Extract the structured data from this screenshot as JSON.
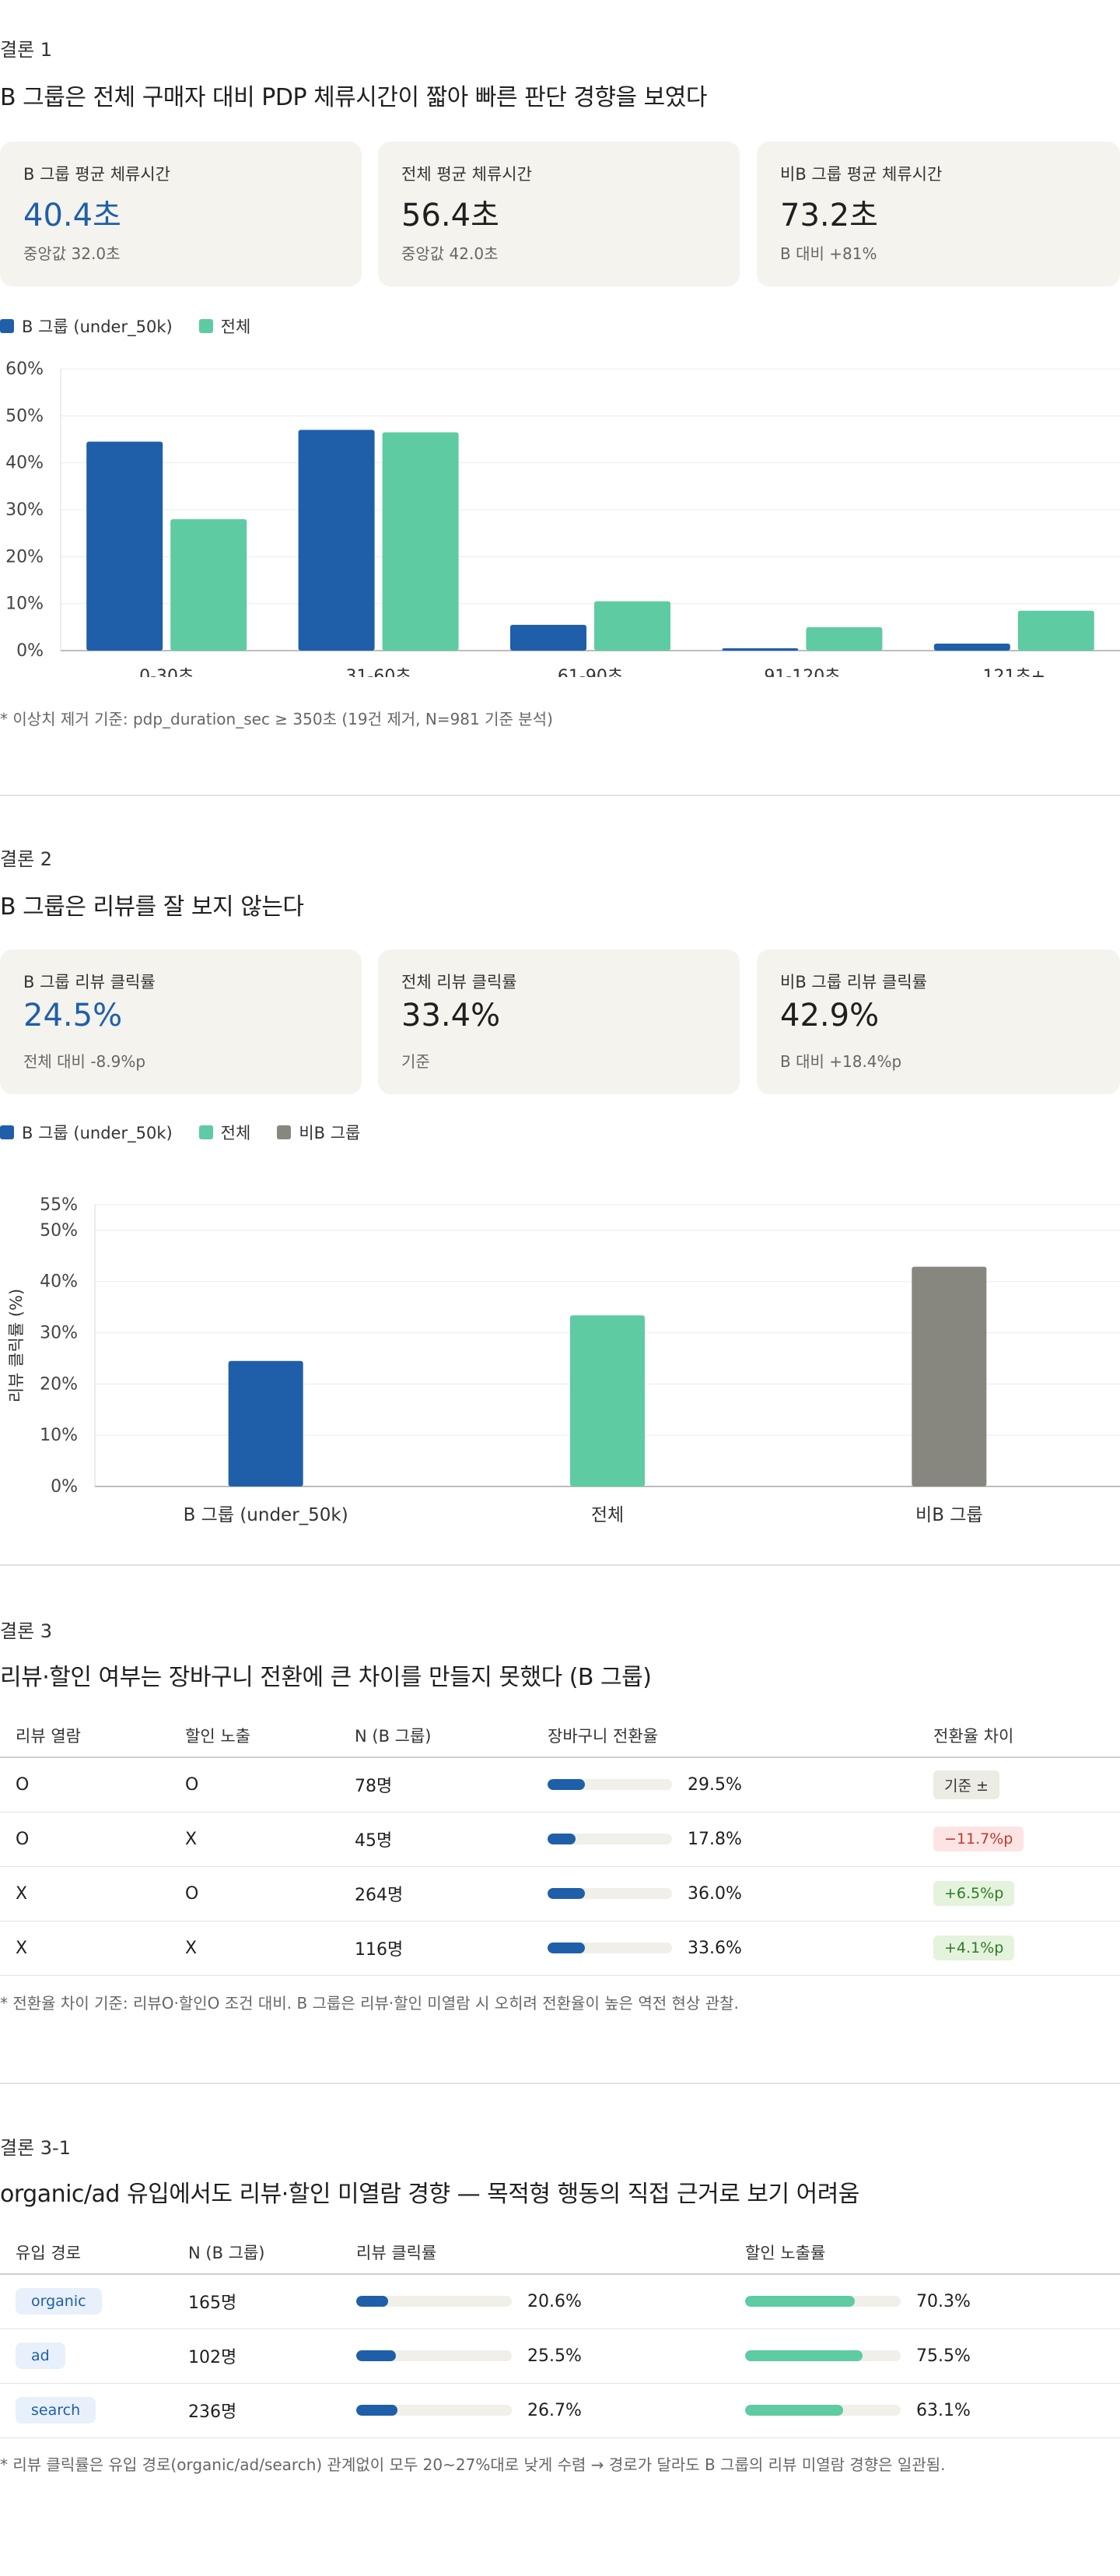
{
  "colors": {
    "b_group": "#1f5fa9",
    "overall": "#5ecba2",
    "non_b": "#87877f",
    "badge_neutral_bg": "#ecebe4",
    "badge_neg_bg": "#fde4e4",
    "badge_neg_fg": "#c0392b",
    "badge_pos_bg": "#e4f3dc",
    "badge_pos_fg": "#2f7a2a"
  },
  "s1": {
    "eyebrow": "결론 1",
    "headline": "B 그룹은 전체 구매자 대비 PDP 체류시간이 짧아 빠른 판단 경향을 보였다",
    "cards": [
      {
        "label": "B 그룹 평균 체류시간",
        "value": "40.4초",
        "sub": "중앙값 32.0초"
      },
      {
        "label": "전체 평균 체류시간",
        "value": "56.4초",
        "sub": "중앙값 42.0초"
      },
      {
        "label": "비B 그룹 평균 체류시간",
        "value": "73.2초",
        "sub": "B 대비 +81%"
      }
    ],
    "legend": [
      "B 그룹 (under_50k)",
      "전체"
    ],
    "note": "* 이상치 제거 기준: pdp_duration_sec ≥ 350초 (19건 제거, N=981 기준 분석)"
  },
  "s2": {
    "eyebrow": "결론 2",
    "headline": "B 그룹은 리뷰를 잘 보지 않는다",
    "cards": [
      {
        "label": "B 그룹 리뷰 클릭률",
        "value": "24.5%",
        "sub": "전체 대비 -8.9%p"
      },
      {
        "label": "전체 리뷰 클릭률",
        "value": "33.4%",
        "sub": "기준"
      },
      {
        "label": "비B 그룹 리뷰 클릭률",
        "value": "42.9%",
        "sub": "B 대비 +18.4%p"
      }
    ],
    "legend": [
      "B 그룹 (under_50k)",
      "전체",
      "비B 그룹"
    ]
  },
  "s3": {
    "eyebrow": "결론 3",
    "headline": "리뷰·할인 여부는 장바구니 전환에 큰 차이를 만들지 못했다 (B 그룹)",
    "headers": [
      "리뷰 열람",
      "할인 노출",
      "N (B 그룹)",
      "장바구니 전환율",
      "전환율 차이"
    ],
    "rows": [
      {
        "review": "O",
        "discount": "O",
        "n": "78명",
        "rate": 29.5,
        "rate_label": "29.5%",
        "diff": "기준 ±",
        "kind": "neutral"
      },
      {
        "review": "O",
        "discount": "X",
        "n": "45명",
        "rate": 17.8,
        "rate_label": "17.8%",
        "diff": "−11.7%p",
        "kind": "neg"
      },
      {
        "review": "X",
        "discount": "O",
        "n": "264명",
        "rate": 36.0,
        "rate_label": "36.0%",
        "diff": "+6.5%p",
        "kind": "pos"
      },
      {
        "review": "X",
        "discount": "X",
        "n": "116명",
        "rate": 33.6,
        "rate_label": "33.6%",
        "diff": "+4.1%p",
        "kind": "pos"
      }
    ],
    "note": "* 전환율 차이 기준: 리뷰O·할인O 조건 대비. B 그룹은 리뷰·할인 미열람 시 오히려 전환율이 높은 역전 현상 관찰."
  },
  "s31": {
    "eyebrow": "결론 3-1",
    "headline": "organic/ad 유입에서도 리뷰·할인 미열람 경향 — 목적형 행동의 직접 근거로 보기 어려움",
    "headers": [
      "유입 경로",
      "N (B 그룹)",
      "리뷰 클릭률",
      "할인 노출률"
    ],
    "rows": [
      {
        "channel": "organic",
        "n": "165명",
        "review": 20.6,
        "review_label": "20.6%",
        "discount": 70.3,
        "discount_label": "70.3%"
      },
      {
        "channel": "ad",
        "n": "102명",
        "review": 25.5,
        "review_label": "25.5%",
        "discount": 75.5,
        "discount_label": "75.5%"
      },
      {
        "channel": "search",
        "n": "236명",
        "review": 26.7,
        "review_label": "26.7%",
        "discount": 63.1,
        "discount_label": "63.1%"
      }
    ],
    "note": "* 리뷰 클릭률은 유입 경로(organic/ad/search) 관계없이 모두 20~27%대로 낮게 수렴 → 경로가 달라도 B 그룹의 리뷰 미열람 경향은 일관됨."
  },
  "chart_data": [
    {
      "type": "bar",
      "categories": [
        "0-30초",
        "31-60초",
        "61-90초",
        "91-120초",
        "121초+"
      ],
      "series": [
        {
          "name": "B 그룹 (under_50k)",
          "values": [
            44.5,
            47.0,
            5.5,
            0.5,
            1.5
          ]
        },
        {
          "name": "전체",
          "values": [
            28.0,
            46.5,
            10.5,
            5.0,
            8.5
          ]
        }
      ],
      "ylim": [
        0,
        60
      ],
      "yticks": [
        "0%",
        "10%",
        "20%",
        "30%",
        "40%",
        "50%",
        "60%"
      ],
      "ytick_values": [
        0,
        10,
        20,
        30,
        40,
        50,
        60
      ],
      "grid": true
    },
    {
      "type": "bar",
      "categories": [
        "B 그룹 (under_50k)",
        "전체",
        "비B 그룹"
      ],
      "values": [
        24.5,
        33.4,
        42.9
      ],
      "ylabel": "리뷰 클릭률 (%)",
      "ylim": [
        0,
        55
      ],
      "yticks": [
        "0%",
        "10%",
        "20%",
        "30%",
        "40%",
        "50%",
        "55%"
      ],
      "ytick_values": [
        0,
        10,
        20,
        30,
        40,
        50,
        55
      ],
      "grid": true
    }
  ]
}
